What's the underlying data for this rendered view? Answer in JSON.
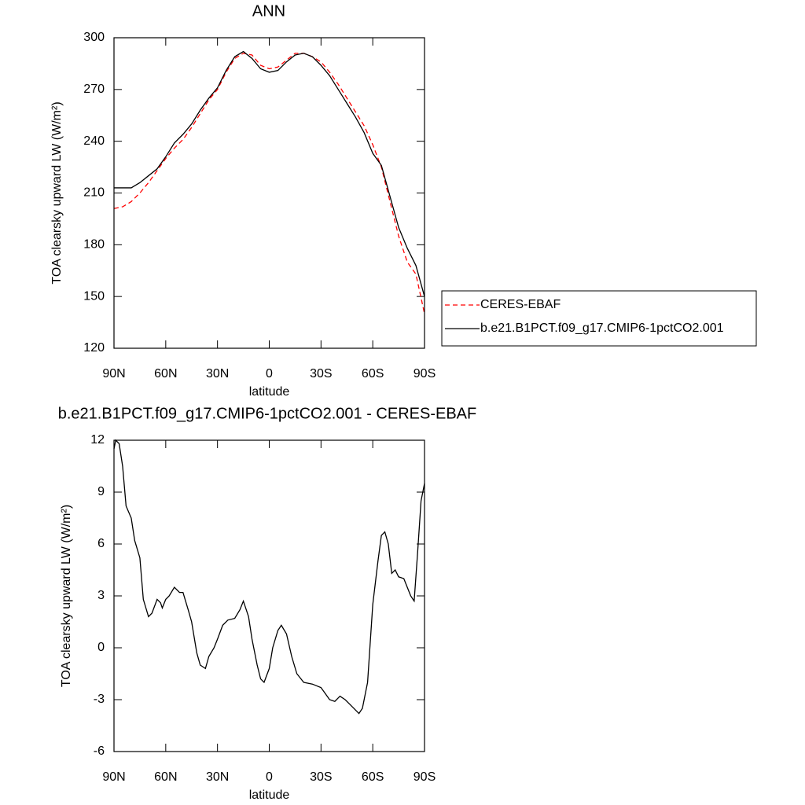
{
  "chart_data": [
    {
      "type": "line",
      "title": "ANN",
      "xlabel": "latitude",
      "ylabel": "TOA clearsky upward LW (W/m²)",
      "x": [
        90,
        85,
        80,
        75,
        70,
        65,
        60,
        55,
        50,
        45,
        40,
        35,
        30,
        25,
        20,
        15,
        10,
        5,
        0,
        -5,
        -10,
        -15,
        -20,
        -25,
        -30,
        -35,
        -40,
        -45,
        -50,
        -55,
        -60,
        -65,
        -70,
        -75,
        -80,
        -85,
        -90
      ],
      "series": [
        {
          "name": "CERES-EBAF",
          "color": "#ff0000",
          "line_style": "dashed",
          "values": [
            201,
            202,
            205,
            210,
            216,
            223,
            230,
            236,
            241,
            248,
            256,
            264,
            270,
            280,
            288,
            291,
            290,
            284,
            282,
            283,
            287,
            291,
            291,
            289,
            286,
            280,
            273,
            265,
            257,
            249,
            238,
            225,
            205,
            185,
            170,
            163,
            140
          ]
        },
        {
          "name": "b.e21.B1PCT.f09_g17.CMIP6-1pctCO2.001",
          "color": "#000000",
          "line_style": "solid",
          "values": [
            213,
            213,
            213,
            216,
            220,
            224,
            231,
            239,
            244,
            250,
            258,
            265,
            271,
            281,
            289,
            292,
            288,
            282,
            280,
            281,
            286,
            290,
            291,
            289,
            284,
            278,
            270,
            262,
            254,
            245,
            233,
            226,
            208,
            190,
            178,
            168,
            150
          ]
        }
      ],
      "xlim": [
        90,
        -90
      ],
      "xticks": [
        {
          "value": 90,
          "label": "90N"
        },
        {
          "value": 60,
          "label": "60N"
        },
        {
          "value": 30,
          "label": "30N"
        },
        0,
        {
          "value": -30,
          "label": "30S"
        },
        {
          "value": -60,
          "label": "60S"
        },
        {
          "value": -90,
          "label": "90S"
        }
      ],
      "ylim": [
        120,
        300
      ],
      "yticks": [
        120,
        150,
        180,
        210,
        240,
        270,
        300
      ],
      "legend": "right"
    },
    {
      "type": "line",
      "title": "b.e21.B1PCT.f09_g17.CMIP6-1pctCO2.001 - CERES-EBAF",
      "xlabel": "latitude",
      "ylabel": "TOA clearsky upward LW (W/m²)",
      "x": [
        90,
        89,
        87,
        85,
        83,
        80,
        78,
        75,
        73,
        70,
        68,
        65,
        63,
        62,
        60,
        58,
        55,
        52,
        50,
        47,
        45,
        42,
        40,
        37,
        35,
        32,
        30,
        27,
        24,
        20,
        17,
        15,
        12,
        10,
        7,
        5,
        3,
        0,
        -2,
        -5,
        -7,
        -10,
        -13,
        -16,
        -20,
        -25,
        -30,
        -35,
        -38,
        -41,
        -44,
        -47,
        -50,
        -52,
        -54,
        -57,
        -60,
        -63,
        -65,
        -67,
        -69,
        -71,
        -73,
        -75,
        -78,
        -80,
        -82,
        -84,
        -86,
        -88,
        -90
      ],
      "values": [
        11.5,
        12,
        11.8,
        10.5,
        8.2,
        7.5,
        6.2,
        5.2,
        2.8,
        1.8,
        2.0,
        2.8,
        2.6,
        2.3,
        2.8,
        3.0,
        3.5,
        3.2,
        3.2,
        2.2,
        1.5,
        -0.3,
        -1.0,
        -1.2,
        -0.5,
        0.0,
        0.5,
        1.3,
        1.6,
        1.7,
        2.2,
        2.7,
        1.8,
        0.5,
        -1.0,
        -1.8,
        -2.0,
        -1.2,
        0.0,
        1.0,
        1.3,
        0.8,
        -0.5,
        -1.5,
        -2.0,
        -2.1,
        -2.3,
        -3.0,
        -3.1,
        -2.8,
        -3.0,
        -3.3,
        -3.6,
        -3.8,
        -3.5,
        -2.0,
        2.5,
        5.0,
        6.5,
        6.7,
        6.0,
        4.3,
        4.5,
        4.1,
        4.0,
        3.5,
        3.0,
        2.7,
        5.5,
        8.5,
        9.5
      ],
      "color": "#000000",
      "xlim": [
        90,
        -90
      ],
      "xticks": [
        {
          "value": 90,
          "label": "90N"
        },
        {
          "value": 60,
          "label": "60N"
        },
        {
          "value": 30,
          "label": "30N"
        },
        0,
        {
          "value": -30,
          "label": "30S"
        },
        {
          "value": -60,
          "label": "60S"
        },
        {
          "value": -90,
          "label": "90S"
        }
      ],
      "ylim": [
        -6,
        12
      ],
      "yticks": [
        -6,
        -3,
        0,
        3,
        6,
        9,
        12
      ]
    }
  ]
}
